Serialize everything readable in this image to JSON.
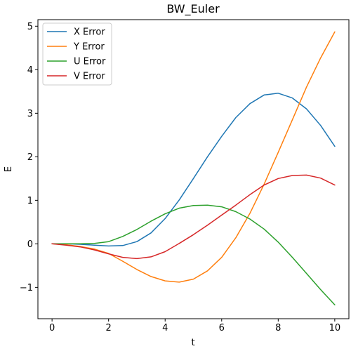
{
  "chart_data": {
    "type": "line",
    "title": "BW_Euler",
    "xlabel": "t",
    "ylabel": "E",
    "xlim": [
      -0.5,
      10.5
    ],
    "ylim": [
      -1.72,
      5.15
    ],
    "xticks": [
      0,
      2,
      4,
      6,
      8,
      10
    ],
    "yticks": [
      -1,
      0,
      1,
      2,
      3,
      4,
      5
    ],
    "xtick_labels": [
      "0",
      "2",
      "4",
      "6",
      "8",
      "10"
    ],
    "ytick_labels": [
      "−1",
      "0",
      "1",
      "2",
      "3",
      "4",
      "5"
    ],
    "grid": false,
    "legend_position": "top-left",
    "x": [
      0,
      0.5,
      1,
      1.5,
      2,
      2.5,
      3,
      3.5,
      4,
      4.5,
      5,
      5.5,
      6,
      6.5,
      7,
      7.5,
      8,
      8.5,
      9,
      9.5,
      10
    ],
    "series": [
      {
        "name": "X Error",
        "color": "#1f77b4",
        "values": [
          0,
          0,
          -0.01,
          -0.03,
          -0.05,
          -0.04,
          0.05,
          0.25,
          0.58,
          1.01,
          1.5,
          2.0,
          2.47,
          2.9,
          3.22,
          3.42,
          3.46,
          3.35,
          3.1,
          2.72,
          2.24
        ]
      },
      {
        "name": "Y Error",
        "color": "#ff7f0e",
        "values": [
          0,
          -0.02,
          -0.06,
          -0.12,
          -0.22,
          -0.4,
          -0.59,
          -0.75,
          -0.85,
          -0.88,
          -0.81,
          -0.62,
          -0.31,
          0.14,
          0.7,
          1.37,
          2.1,
          2.85,
          3.6,
          4.27,
          4.87
        ]
      },
      {
        "name": "U Error",
        "color": "#2ca02c",
        "values": [
          0,
          0,
          0,
          0.01,
          0.05,
          0.17,
          0.33,
          0.52,
          0.69,
          0.82,
          0.88,
          0.89,
          0.85,
          0.74,
          0.57,
          0.34,
          0.04,
          -0.31,
          -0.68,
          -1.05,
          -1.4
        ]
      },
      {
        "name": "V Error",
        "color": "#d62728",
        "values": [
          0,
          -0.03,
          -0.07,
          -0.14,
          -0.23,
          -0.31,
          -0.34,
          -0.3,
          -0.18,
          0.01,
          0.21,
          0.43,
          0.66,
          0.89,
          1.13,
          1.35,
          1.5,
          1.57,
          1.58,
          1.51,
          1.35
        ]
      }
    ]
  }
}
